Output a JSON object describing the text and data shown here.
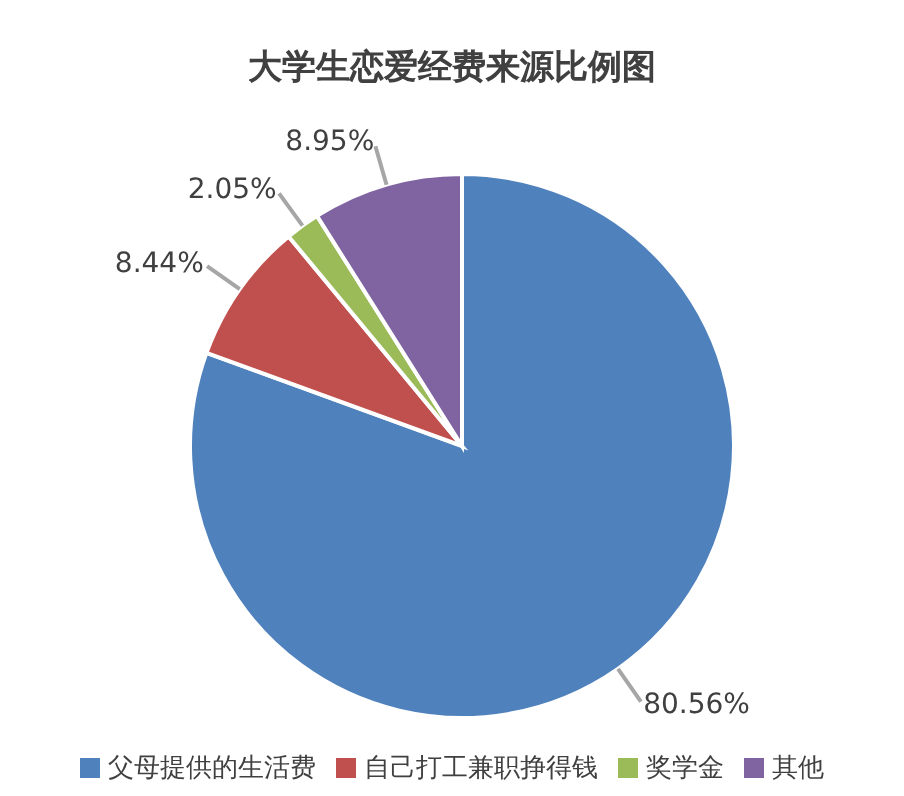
{
  "chart_data": {
    "type": "pie",
    "title": "大学生恋爱经费来源比例图",
    "categories": [
      "父母提供的生活费",
      "自己打工兼职挣得钱",
      "奖学金",
      "其他"
    ],
    "values": [
      80.56,
      8.44,
      2.05,
      8.95
    ],
    "colors": [
      "#4f81bd",
      "#c0504d",
      "#9bbb59",
      "#8064a2"
    ],
    "value_labels": [
      "80.56%",
      "8.44%",
      "2.05%",
      "8.95%"
    ],
    "legend": "bottom"
  }
}
